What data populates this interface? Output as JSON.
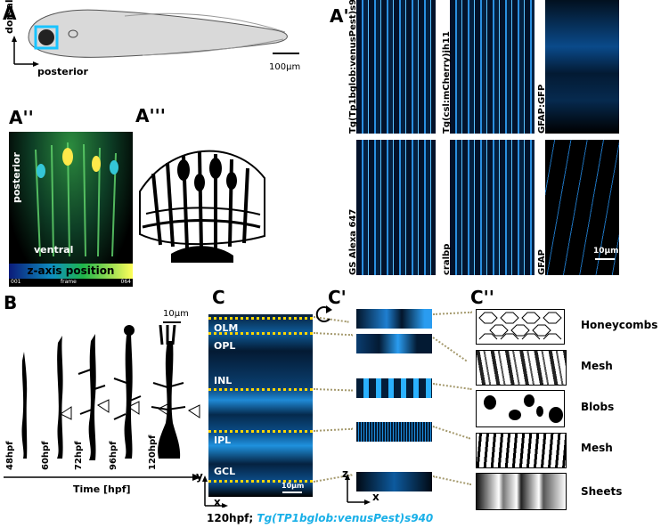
{
  "panels": {
    "A": {
      "label": "A",
      "axis_dorsal": "dorsal",
      "axis_posterior": "posterior",
      "scale": "100µm"
    },
    "A_prime": {
      "label": "A'",
      "labels_top": [
        "Tg(Tp1bglob:venusPest)s940",
        "Tg(csl:mCherry)jh11",
        "GFAP:GFP"
      ],
      "labels_bottom": [
        "GS Alexa 647",
        "cralbp",
        "GFAP"
      ],
      "scale": "10µm"
    },
    "A_dprime": {
      "label": "A''",
      "axis_posterior": "posterior",
      "axis_ventral": "ventral",
      "colorbar_title": "z-axis position",
      "colorbar_left": "001",
      "colorbar_mid": "frame",
      "colorbar_right": "064"
    },
    "A_tprime": {
      "label": "A'''"
    },
    "B": {
      "label": "B",
      "scale": "10µm",
      "stages": [
        "48hpf",
        "60hpf",
        "72hpf",
        "96hpf",
        "120hpf"
      ],
      "axis_label": "Time [hpf]"
    },
    "C": {
      "label": "C",
      "layers": [
        "OLM",
        "OPL",
        "INL",
        "IPL",
        "GCL"
      ],
      "axis_y": "y",
      "axis_x": "x",
      "scale": "10µm",
      "caption_stage": "120hpf;",
      "caption_line": "Tg(TP1bglob:venusPest)s940"
    },
    "C_prime": {
      "label": "C'",
      "axis_z": "z",
      "axis_x": "x"
    },
    "C_dprime": {
      "label": "C''",
      "shapes": [
        "Honeycombs",
        "Mesh",
        "Blobs",
        "Mesh",
        "Sheets"
      ]
    }
  }
}
